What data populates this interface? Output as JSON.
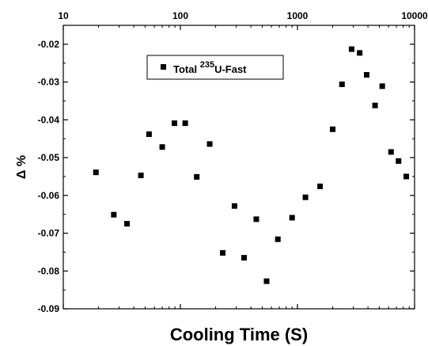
{
  "chart_data": {
    "type": "scatter",
    "xlabel": "Cooling Time (S)",
    "ylabel": "Δ %",
    "xscale": "log",
    "xlim": [
      10,
      10000
    ],
    "ylim": [
      -0.09,
      -0.015
    ],
    "x_ticks": [
      "10",
      "100",
      "1000",
      "10000"
    ],
    "y_ticks": [
      "-0.02",
      "-0.03",
      "-0.04",
      "-0.05",
      "-0.06",
      "-0.07",
      "-0.08",
      "-0.09"
    ],
    "legend": {
      "position": "top-center",
      "entries": [
        {
          "marker": "square",
          "label_prefix": "Total ",
          "label_sup": "235",
          "label_suffix": "U-Fast"
        }
      ]
    },
    "series": [
      {
        "name": "Total 235U-Fast",
        "color": "#000000",
        "marker": "square",
        "points": [
          [
            19,
            -0.0539
          ],
          [
            27,
            -0.0651
          ],
          [
            35,
            -0.0675
          ],
          [
            46,
            -0.0547
          ],
          [
            54,
            -0.0438
          ],
          [
            70,
            -0.0472
          ],
          [
            89,
            -0.0409
          ],
          [
            110,
            -0.0409
          ],
          [
            138,
            -0.0551
          ],
          [
            178,
            -0.0464
          ],
          [
            230,
            -0.0752
          ],
          [
            290,
            -0.0628
          ],
          [
            350,
            -0.0765
          ],
          [
            445,
            -0.0663
          ],
          [
            545,
            -0.0827
          ],
          [
            680,
            -0.0716
          ],
          [
            900,
            -0.0659
          ],
          [
            1170,
            -0.0605
          ],
          [
            1560,
            -0.0576
          ],
          [
            2000,
            -0.0425
          ],
          [
            2400,
            -0.0306
          ],
          [
            2900,
            -0.0213
          ],
          [
            3400,
            -0.0223
          ],
          [
            3900,
            -0.0281
          ],
          [
            4600,
            -0.0362
          ],
          [
            5300,
            -0.0311
          ],
          [
            6300,
            -0.0485
          ],
          [
            7300,
            -0.0509
          ],
          [
            8500,
            -0.055
          ]
        ]
      }
    ]
  }
}
